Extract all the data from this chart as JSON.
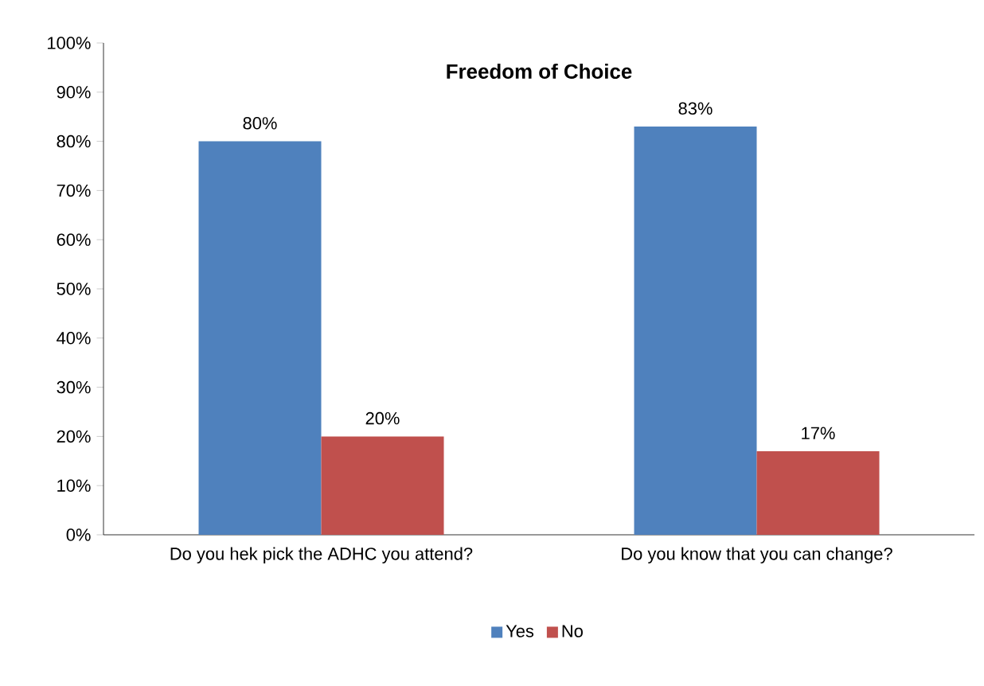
{
  "chart_data": {
    "type": "bar",
    "title": "Freedom of Choice",
    "categories": [
      "Do you hek pick the ADHC you attend?",
      "Do you know that you can change?"
    ],
    "series": [
      {
        "name": "Yes",
        "color": "#4f81bd",
        "values": [
          80,
          83
        ],
        "value_labels": [
          "80%",
          "83%"
        ]
      },
      {
        "name": "No",
        "color": "#c0504d",
        "values": [
          20,
          17
        ],
        "value_labels": [
          "20%",
          "17%"
        ]
      }
    ],
    "ylim": [
      0,
      100
    ],
    "yticks": [
      {
        "value": 0,
        "label": "0%"
      },
      {
        "value": 10,
        "label": "10%"
      },
      {
        "value": 20,
        "label": "20%"
      },
      {
        "value": 30,
        "label": "30%"
      },
      {
        "value": 40,
        "label": "40%"
      },
      {
        "value": 50,
        "label": "50%"
      },
      {
        "value": 60,
        "label": "60%"
      },
      {
        "value": 70,
        "label": "70%"
      },
      {
        "value": 80,
        "label": "80%"
      },
      {
        "value": 90,
        "label": "90%"
      },
      {
        "value": 100,
        "label": "100%"
      }
    ],
    "grid": false,
    "legend": "bottom"
  }
}
